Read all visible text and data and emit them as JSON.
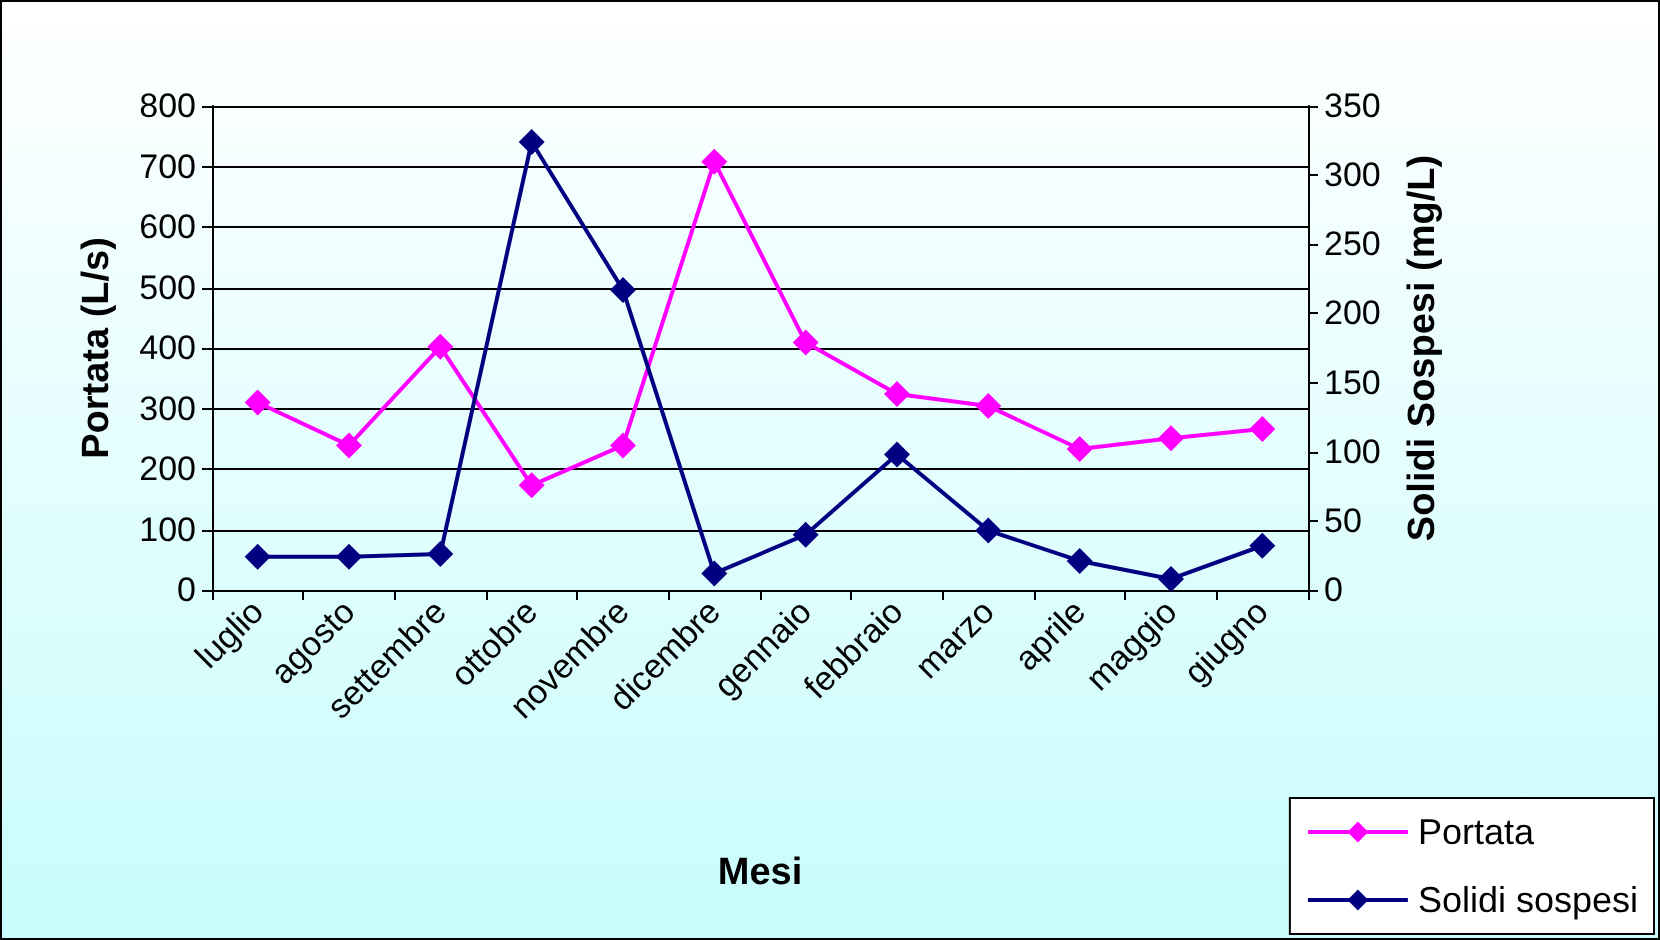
{
  "chart_data": {
    "type": "line",
    "xlabel": "Mesi",
    "ylabel": "Portata (L/s)",
    "y2label": "Solidi Sospesi (mg/L)",
    "categories": [
      "luglio",
      "agosto",
      "settembre",
      "ottobre",
      "novembre",
      "dicembre",
      "gennaio",
      "febbraio",
      "marzo",
      "aprile",
      "maggio",
      "giugno"
    ],
    "series": [
      {
        "name": "Portata",
        "color": "#ff00ff",
        "values": [
          310,
          239,
          402,
          173,
          239,
          708,
          409,
          324,
          304,
          233,
          251,
          266
        ]
      },
      {
        "name": "Solidi sospesi",
        "color": "#000080",
        "axis": "y2",
        "values": [
          24,
          24,
          26,
          324,
          217,
          12,
          40,
          98,
          43,
          21,
          8,
          32
        ]
      }
    ],
    "ylim": [
      0,
      800
    ],
    "yticks": [
      0,
      100,
      200,
      300,
      400,
      500,
      600,
      700,
      800
    ],
    "y2lim": [
      0,
      350
    ],
    "y2ticks": [
      0,
      50,
      100,
      150,
      200,
      250,
      300,
      350
    ],
    "grid": "y",
    "legend": "bottom right",
    "marker": "diamond",
    "line_style": "solid"
  }
}
